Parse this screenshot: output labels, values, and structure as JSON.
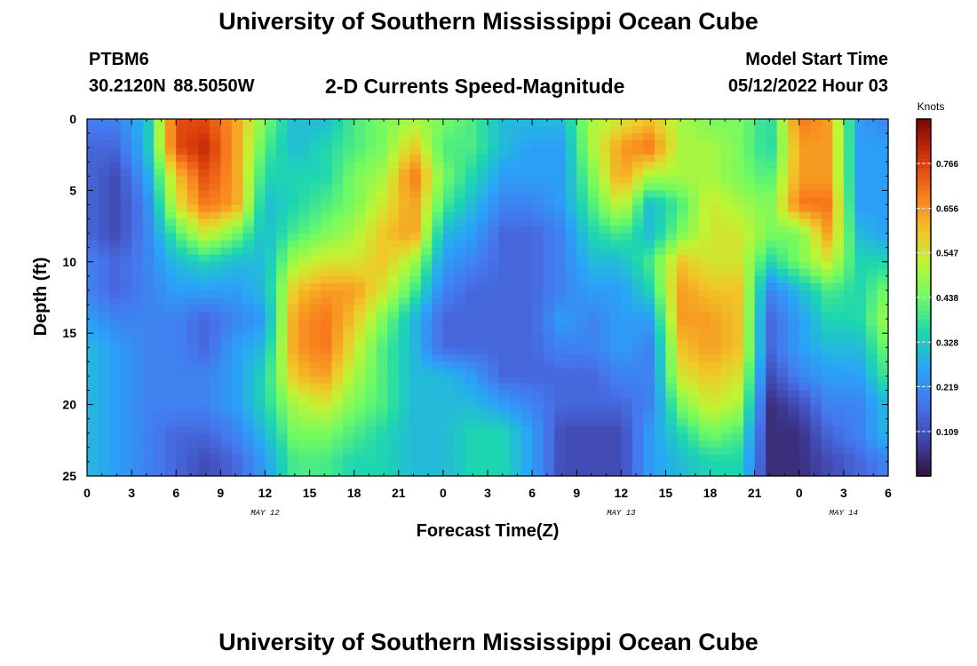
{
  "header": {
    "title": "University of Southern Mississippi Ocean Cube",
    "station_id": "PTBM6",
    "station_coords": "30.2120N  88.5050W",
    "chart_title": "2-D Currents Speed-Magnitude",
    "model_start_label": "Model Start Time",
    "model_start_value": "05/12/2022 Hour 03"
  },
  "footer": {
    "title": "University of Southern Mississippi Ocean Cube"
  },
  "chart_data": {
    "type": "heatmap",
    "title": "2-D Currents Speed-Magnitude",
    "xlabel": "Forecast Time(Z)",
    "ylabel": "Depth (ft)",
    "xlim": [
      0,
      54
    ],
    "ylim": [
      25,
      0
    ],
    "x_tick_values": [
      0,
      3,
      6,
      9,
      12,
      15,
      18,
      21,
      24,
      27,
      30,
      33,
      36,
      39,
      42,
      45,
      48,
      51,
      54
    ],
    "x_tick_labels": [
      "0",
      "3",
      "6",
      "9",
      "12",
      "15",
      "18",
      "21",
      "0",
      "3",
      "6",
      "9",
      "12",
      "15",
      "18",
      "21",
      "0",
      "3",
      "6"
    ],
    "y_tick_values": [
      0,
      5,
      10,
      15,
      20,
      25
    ],
    "y_tick_labels": [
      "0",
      "5",
      "10",
      "15",
      "20",
      "25"
    ],
    "day_labels": [
      {
        "text": "MAY 12",
        "x": 12
      },
      {
        "text": "MAY 13",
        "x": 36
      },
      {
        "text": "MAY 14",
        "x": 51
      }
    ],
    "colorbar": {
      "title": "Knots",
      "min": 0,
      "max": 0.875,
      "tick_labels": [
        "0.766",
        "0.656",
        "0.547",
        "0.438",
        "0.328",
        "0.219",
        "0.109"
      ],
      "tick_values": [
        0.766,
        0.656,
        0.547,
        0.438,
        0.328,
        0.219,
        0.109
      ],
      "colormap": "turbo"
    },
    "grid_x_hours": [
      0,
      2,
      4,
      6,
      8,
      10,
      12,
      14,
      16,
      18,
      20,
      22,
      24,
      26,
      28,
      30,
      32,
      34,
      36,
      38,
      40,
      42,
      44,
      46,
      48,
      50,
      52,
      54
    ],
    "grid_depth_ft": [
      0,
      2,
      4,
      6,
      8,
      10,
      12,
      14,
      16,
      18,
      20,
      22,
      24,
      25
    ],
    "speed_knots": [
      [
        0.2,
        0.2,
        0.3,
        0.75,
        0.75,
        0.65,
        0.45,
        0.3,
        0.3,
        0.4,
        0.45,
        0.5,
        0.45,
        0.4,
        0.3,
        0.3,
        0.3,
        0.5,
        0.55,
        0.6,
        0.5,
        0.45,
        0.45,
        0.35,
        0.7,
        0.65,
        0.25,
        0.2
      ],
      [
        0.15,
        0.15,
        0.3,
        0.75,
        0.8,
        0.65,
        0.4,
        0.3,
        0.35,
        0.4,
        0.45,
        0.6,
        0.4,
        0.4,
        0.3,
        0.25,
        0.25,
        0.5,
        0.65,
        0.7,
        0.5,
        0.5,
        0.45,
        0.35,
        0.65,
        0.65,
        0.25,
        0.25
      ],
      [
        0.15,
        0.1,
        0.25,
        0.6,
        0.75,
        0.65,
        0.35,
        0.35,
        0.35,
        0.45,
        0.5,
        0.7,
        0.45,
        0.35,
        0.25,
        0.25,
        0.25,
        0.45,
        0.65,
        0.5,
        0.5,
        0.5,
        0.45,
        0.4,
        0.65,
        0.65,
        0.25,
        0.25
      ],
      [
        0.15,
        0.1,
        0.2,
        0.55,
        0.7,
        0.65,
        0.3,
        0.35,
        0.4,
        0.45,
        0.55,
        0.65,
        0.4,
        0.3,
        0.2,
        0.2,
        0.25,
        0.4,
        0.55,
        0.3,
        0.4,
        0.55,
        0.5,
        0.45,
        0.7,
        0.7,
        0.25,
        0.25
      ],
      [
        0.15,
        0.1,
        0.2,
        0.4,
        0.55,
        0.45,
        0.3,
        0.4,
        0.45,
        0.5,
        0.6,
        0.65,
        0.3,
        0.25,
        0.15,
        0.15,
        0.2,
        0.35,
        0.4,
        0.3,
        0.45,
        0.55,
        0.55,
        0.45,
        0.45,
        0.65,
        0.3,
        0.25
      ],
      [
        0.2,
        0.15,
        0.2,
        0.3,
        0.35,
        0.3,
        0.3,
        0.5,
        0.55,
        0.55,
        0.6,
        0.5,
        0.25,
        0.2,
        0.15,
        0.15,
        0.2,
        0.3,
        0.3,
        0.4,
        0.6,
        0.55,
        0.55,
        0.35,
        0.45,
        0.55,
        0.35,
        0.35
      ],
      [
        0.2,
        0.15,
        0.2,
        0.25,
        0.25,
        0.25,
        0.3,
        0.6,
        0.65,
        0.65,
        0.55,
        0.4,
        0.2,
        0.15,
        0.15,
        0.15,
        0.2,
        0.25,
        0.25,
        0.35,
        0.65,
        0.6,
        0.6,
        0.2,
        0.3,
        0.4,
        0.35,
        0.45
      ],
      [
        0.25,
        0.2,
        0.2,
        0.2,
        0.15,
        0.2,
        0.25,
        0.65,
        0.7,
        0.6,
        0.45,
        0.3,
        0.15,
        0.15,
        0.15,
        0.15,
        0.25,
        0.2,
        0.25,
        0.25,
        0.65,
        0.65,
        0.6,
        0.15,
        0.25,
        0.35,
        0.35,
        0.5
      ],
      [
        0.3,
        0.25,
        0.2,
        0.2,
        0.15,
        0.25,
        0.3,
        0.65,
        0.7,
        0.55,
        0.4,
        0.3,
        0.15,
        0.15,
        0.15,
        0.15,
        0.2,
        0.2,
        0.25,
        0.2,
        0.6,
        0.65,
        0.6,
        0.15,
        0.25,
        0.3,
        0.3,
        0.45
      ],
      [
        0.3,
        0.25,
        0.2,
        0.2,
        0.2,
        0.25,
        0.35,
        0.6,
        0.65,
        0.5,
        0.4,
        0.3,
        0.3,
        0.25,
        0.15,
        0.15,
        0.15,
        0.15,
        0.2,
        0.2,
        0.55,
        0.6,
        0.55,
        0.1,
        0.2,
        0.25,
        0.25,
        0.4
      ],
      [
        0.3,
        0.25,
        0.2,
        0.2,
        0.2,
        0.25,
        0.35,
        0.5,
        0.55,
        0.45,
        0.4,
        0.3,
        0.3,
        0.3,
        0.25,
        0.2,
        0.15,
        0.15,
        0.15,
        0.2,
        0.45,
        0.55,
        0.5,
        0.05,
        0.1,
        0.2,
        0.2,
        0.3
      ],
      [
        0.3,
        0.25,
        0.2,
        0.15,
        0.15,
        0.2,
        0.3,
        0.45,
        0.45,
        0.4,
        0.35,
        0.3,
        0.3,
        0.35,
        0.35,
        0.25,
        0.1,
        0.1,
        0.1,
        0.25,
        0.35,
        0.45,
        0.4,
        0.05,
        0.05,
        0.15,
        0.2,
        0.3
      ],
      [
        0.3,
        0.25,
        0.2,
        0.15,
        0.1,
        0.15,
        0.25,
        0.4,
        0.4,
        0.35,
        0.35,
        0.3,
        0.3,
        0.35,
        0.35,
        0.25,
        0.1,
        0.1,
        0.1,
        0.25,
        0.3,
        0.35,
        0.35,
        0.05,
        0.05,
        0.1,
        0.15,
        0.2
      ],
      [
        0.3,
        0.25,
        0.2,
        0.15,
        0.1,
        0.15,
        0.25,
        0.4,
        0.4,
        0.35,
        0.35,
        0.3,
        0.3,
        0.35,
        0.35,
        0.25,
        0.1,
        0.1,
        0.1,
        0.25,
        0.3,
        0.35,
        0.35,
        0.05,
        0.05,
        0.1,
        0.15,
        0.2
      ]
    ]
  }
}
